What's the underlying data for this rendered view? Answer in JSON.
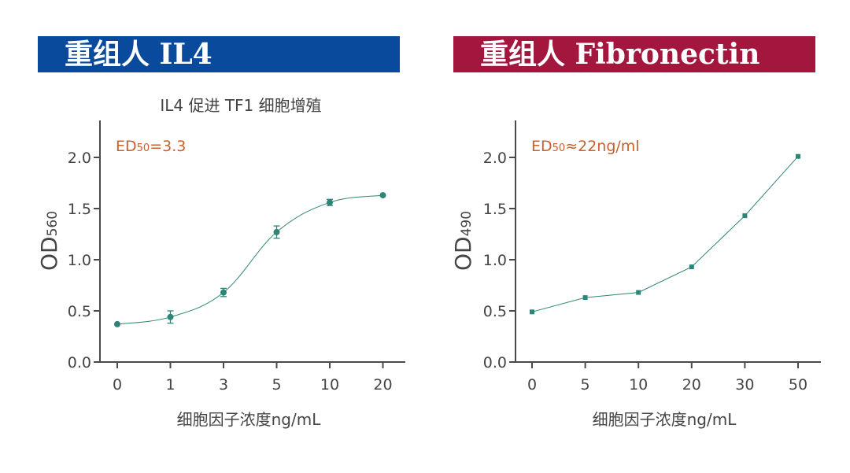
{
  "banners": [
    {
      "text": "重组人 IL4",
      "color": "#0a4a9c"
    },
    {
      "text": "重组人 Fibronectin",
      "color": "#a3173f"
    }
  ],
  "series_color": "#2e8577",
  "annotation_color": "#c8612b",
  "chart_data": [
    {
      "type": "line",
      "title": "IL4 促进 TF1 细胞增殖",
      "annotation": {
        "prefix": "ED",
        "sub": "50",
        "suffix": "=3.3"
      },
      "xlabel": "细胞因子浓度ng/mL",
      "ylabel": {
        "main": "OD",
        "sub": "560"
      },
      "x_scale": "categorical",
      "categories": [
        "0",
        "1",
        "3",
        "5",
        "10",
        "20"
      ],
      "values": [
        0.37,
        0.44,
        0.68,
        1.27,
        1.56,
        1.63
      ],
      "errors": [
        0.0,
        0.06,
        0.04,
        0.06,
        0.03,
        0.0
      ],
      "marker": "circle",
      "ylim": [
        0.0,
        2.3
      ],
      "yticks": [
        "0.0",
        "0.5",
        "1.0",
        "1.5",
        "2.0"
      ],
      "grid": false
    },
    {
      "type": "line",
      "title": "",
      "annotation": {
        "prefix": "ED",
        "sub": "50",
        "suffix": "≈22ng/ml"
      },
      "xlabel": "细胞因子浓度ng/mL",
      "ylabel": {
        "main": "OD",
        "sub": "490"
      },
      "x_scale": "categorical",
      "categories": [
        "0",
        "5",
        "10",
        "20",
        "30",
        "50"
      ],
      "values": [
        0.49,
        0.63,
        0.68,
        0.93,
        1.43,
        2.01
      ],
      "errors": [
        0,
        0,
        0,
        0,
        0,
        0
      ],
      "marker": "square",
      "ylim": [
        0.0,
        2.3
      ],
      "yticks": [
        "0.0",
        "0.5",
        "1.0",
        "1.5",
        "2.0"
      ],
      "grid": false
    }
  ]
}
